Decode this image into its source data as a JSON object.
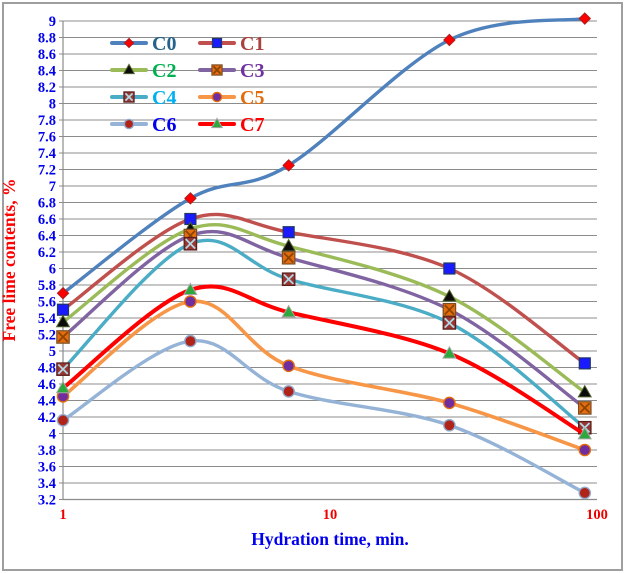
{
  "chart_data": {
    "type": "line",
    "title": "",
    "xlabel": "Hydration time, min.",
    "ylabel": "Free lime contents, %",
    "x_scale": "log",
    "xlim": [
      1,
      100
    ],
    "x_tick_labels": [
      "1",
      "10",
      "100"
    ],
    "x_ticks": [
      1,
      10,
      100
    ],
    "ylim": [
      3.2,
      9.0
    ],
    "y_major": 0.2,
    "grid": "horizontal-only",
    "legend_position": "top-left-inside, 2 columns",
    "x": [
      1,
      3,
      7,
      28,
      90
    ],
    "series": [
      {
        "name": "C0",
        "values": [
          5.7,
          6.85,
          7.25,
          8.77,
          9.03
        ],
        "line_color": "#4F81BD",
        "label_color": "#25628C",
        "marker": "diamond",
        "marker_fill": "#FE0000",
        "marker_edge": "#A91F1F",
        "marker_x_color": null,
        "line_width": 3.4
      },
      {
        "name": "C1",
        "values": [
          5.5,
          6.6,
          6.44,
          6.0,
          4.85
        ],
        "line_color": "#C0504D",
        "label_color": "#A8423E",
        "marker": "square",
        "marker_fill": "#1A1AFE",
        "marker_edge": "#1F3864",
        "marker_x_color": null,
        "line_width": 3.4
      },
      {
        "name": "C2",
        "values": [
          5.35,
          6.48,
          6.27,
          5.66,
          4.5
        ],
        "line_color": "#9BBB59",
        "label_color": "#00B050",
        "marker": "triangle",
        "marker_fill": "#0C0C0C",
        "marker_edge": "#4F6228",
        "marker_x_color": null,
        "line_width": 3.4
      },
      {
        "name": "C3",
        "values": [
          5.17,
          6.4,
          6.13,
          5.5,
          4.31
        ],
        "line_color": "#8064A2",
        "label_color": "#7030A0",
        "marker": "square-x",
        "marker_fill": "#E66C0E",
        "marker_edge": "#7A4E26",
        "marker_x_color": "#8A4500",
        "line_width": 3.4
      },
      {
        "name": "C4",
        "values": [
          4.78,
          6.3,
          5.87,
          5.34,
          4.07
        ],
        "line_color": "#4BACC6",
        "label_color": "#00B0F0",
        "marker": "square-x",
        "marker_fill": "#993632",
        "marker_edge": "#5C1F1C",
        "marker_x_color": "#AFD9E6",
        "line_width": 3.4
      },
      {
        "name": "C5",
        "values": [
          4.45,
          5.6,
          4.82,
          4.37,
          3.8
        ],
        "line_color": "#F79646",
        "label_color": "#E36C0A",
        "marker": "circle",
        "marker_fill": "#6F2DA0",
        "marker_edge": "#E36C0A",
        "marker_x_color": null,
        "line_width": 3.6
      },
      {
        "name": "C6",
        "values": [
          4.16,
          5.12,
          4.51,
          4.1,
          3.28
        ],
        "line_color": "#95B3D7",
        "label_color": "#0000EE",
        "marker": "circle",
        "marker_fill": "#AF2318",
        "marker_edge": "#8FA8CC",
        "marker_x_color": null,
        "line_width": 3.4
      },
      {
        "name": "C7",
        "values": [
          4.55,
          5.74,
          5.47,
          4.97,
          3.99
        ],
        "line_color": "#FE0000",
        "label_color": "#FE0000",
        "marker": "triangle",
        "marker_fill": "#2CA83C",
        "marker_edge": "#A6A6A6",
        "line_width": 4.0
      }
    ],
    "colors": {
      "grid": "#8C8C8C",
      "axis": "#8C8C8C",
      "y_tick_label": "#0000EE",
      "x_tick_label": "#EE0000",
      "ylabel": "#FE0000",
      "xlabel": "#0000EE",
      "plot_background": "#FFFFFF",
      "frame_border": "#9E9E9E"
    }
  }
}
